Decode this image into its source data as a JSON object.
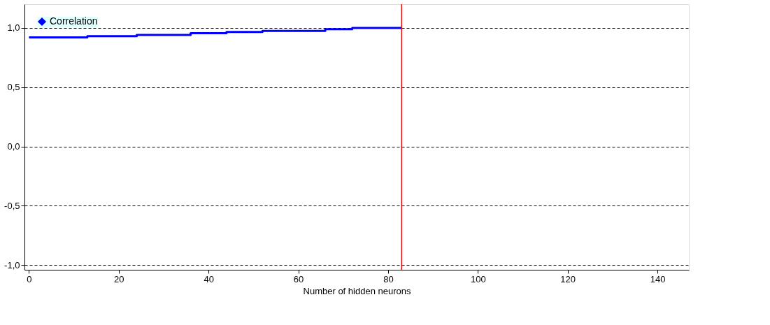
{
  "chart_data": {
    "type": "step",
    "xlabel": "Number of hidden neurons",
    "x": [
      0,
      13,
      24,
      36,
      44,
      52,
      66,
      72,
      83
    ],
    "series": [
      {
        "name": "Correlation",
        "color": "#0000ff",
        "values": [
          0.92,
          0.93,
          0.94,
          0.955,
          0.965,
          0.975,
          0.99,
          1.0,
          1.0
        ]
      }
    ],
    "xlim": [
      -1,
      147
    ],
    "ylim": [
      -1.04,
      1.2
    ],
    "xticks": [
      0,
      20,
      40,
      60,
      80,
      100,
      120,
      140
    ],
    "yticks": [
      {
        "value": -1.0,
        "label": "-1,0"
      },
      {
        "value": -0.5,
        "label": "-0,5"
      },
      {
        "value": 0.0,
        "label": "0,0"
      },
      {
        "value": 0.5,
        "label": "0,5"
      },
      {
        "value": 1.0,
        "label": "1,0"
      }
    ],
    "ref_lines": [
      {
        "axis": "x",
        "value": 83,
        "color": "#ff0000"
      }
    ],
    "grid": "y",
    "legend": "top left"
  }
}
